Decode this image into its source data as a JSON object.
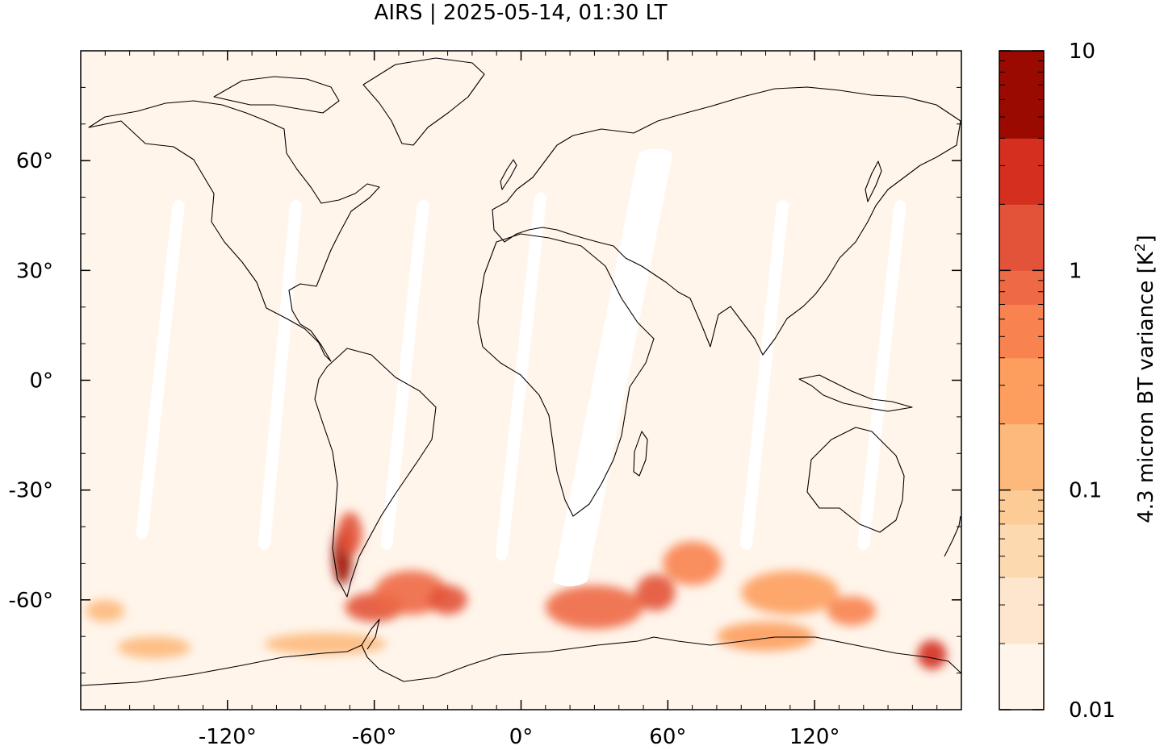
{
  "title": "AIRS | 2025-05-14, 01:30 LT",
  "chart_data": {
    "type": "map-heatmap",
    "title": "AIRS | 2025-05-14, 01:30 LT",
    "projection": "equirectangular",
    "lon_range": [
      -180,
      180
    ],
    "lat_range": [
      -90,
      90
    ],
    "x_ticks": [
      {
        "value": -120,
        "label": "-120°"
      },
      {
        "value": -60,
        "label": "-60°"
      },
      {
        "value": 0,
        "label": "0°"
      },
      {
        "value": 60,
        "label": "60°"
      },
      {
        "value": 120,
        "label": "120°"
      }
    ],
    "y_ticks": [
      {
        "value": 60,
        "label": "60°"
      },
      {
        "value": 30,
        "label": "30°"
      },
      {
        "value": 0,
        "label": "0°"
      },
      {
        "value": -30,
        "label": "-30°"
      },
      {
        "value": -60,
        "label": "-60°"
      }
    ],
    "background_level": 0.012,
    "swath_gaps": [
      {
        "lon_start": -155,
        "lat_start": -42,
        "lon_end": -140,
        "lat_end": 48,
        "width_deg": 5
      },
      {
        "lon_start": -105,
        "lat_start": -45,
        "lon_end": -92,
        "lat_end": 48,
        "width_deg": 5
      },
      {
        "lon_start": -55,
        "lat_start": -45,
        "lon_end": -40,
        "lat_end": 48,
        "width_deg": 5
      },
      {
        "lon_start": -8,
        "lat_start": -48,
        "lon_end": 8,
        "lat_end": 50,
        "width_deg": 5
      },
      {
        "lon_start": 20,
        "lat_start": -55,
        "lon_end": 55,
        "lat_end": 62,
        "width_deg": 14
      },
      {
        "lon_start": 92,
        "lat_start": -45,
        "lon_end": 107,
        "lat_end": 48,
        "width_deg": 5
      },
      {
        "lon_start": 140,
        "lat_start": -45,
        "lon_end": 155,
        "lat_end": 48,
        "width_deg": 5
      }
    ],
    "hotspots": [
      {
        "lon": -73,
        "lat": -48,
        "r_lon": 4,
        "r_lat": 8,
        "value": 6.0
      },
      {
        "lon": -70,
        "lat": -42,
        "r_lon": 5,
        "r_lat": 6,
        "value": 1.5
      },
      {
        "lon": -60,
        "lat": -62,
        "r_lon": 12,
        "r_lat": 4,
        "value": 1.2
      },
      {
        "lon": -45,
        "lat": -58,
        "r_lon": 15,
        "r_lat": 6,
        "value": 0.8
      },
      {
        "lon": -30,
        "lat": -60,
        "r_lon": 8,
        "r_lat": 4,
        "value": 1.0
      },
      {
        "lon": 30,
        "lat": -62,
        "r_lon": 20,
        "r_lat": 6,
        "value": 0.9
      },
      {
        "lon": 55,
        "lat": -58,
        "r_lon": 8,
        "r_lat": 5,
        "value": 1.6
      },
      {
        "lon": 70,
        "lat": -50,
        "r_lon": 12,
        "r_lat": 6,
        "value": 0.4
      },
      {
        "lon": 110,
        "lat": -58,
        "r_lon": 20,
        "r_lat": 6,
        "value": 0.3
      },
      {
        "lon": 135,
        "lat": -63,
        "r_lon": 10,
        "r_lat": 4,
        "value": 0.5
      },
      {
        "lon": 100,
        "lat": -70,
        "r_lon": 20,
        "r_lat": 4,
        "value": 0.3
      },
      {
        "lon": 168,
        "lat": -75,
        "r_lon": 6,
        "r_lat": 4,
        "value": 3.0
      },
      {
        "lon": -80,
        "lat": -72,
        "r_lon": 25,
        "r_lat": 3,
        "value": 0.15
      },
      {
        "lon": -150,
        "lat": -73,
        "r_lon": 15,
        "r_lat": 3,
        "value": 0.12
      },
      {
        "lon": -170,
        "lat": -63,
        "r_lon": 8,
        "r_lat": 3,
        "value": 0.1
      }
    ],
    "colorbar": {
      "label_prefix": "4.3 micron BT variance [K",
      "label_exp": "2",
      "label_suffix": "]",
      "scale": "log",
      "range": [
        0.01,
        10
      ],
      "ticks": [
        {
          "value": 10,
          "label": "10"
        },
        {
          "value": 1,
          "label": "1"
        },
        {
          "value": 0.1,
          "label": "0.1"
        },
        {
          "value": 0.01,
          "label": "0.01"
        }
      ],
      "levels": [
        0.01,
        0.02,
        0.04,
        0.07,
        0.1,
        0.2,
        0.4,
        0.7,
        1,
        2,
        4,
        10
      ],
      "colors": [
        "#fff5eb",
        "#fee6ce",
        "#fdd9b0",
        "#fdcc96",
        "#fdb97c",
        "#fd9e5e",
        "#f88350",
        "#ee6a45",
        "#e35339",
        "#d42f1f",
        "#9b0a00"
      ]
    }
  }
}
